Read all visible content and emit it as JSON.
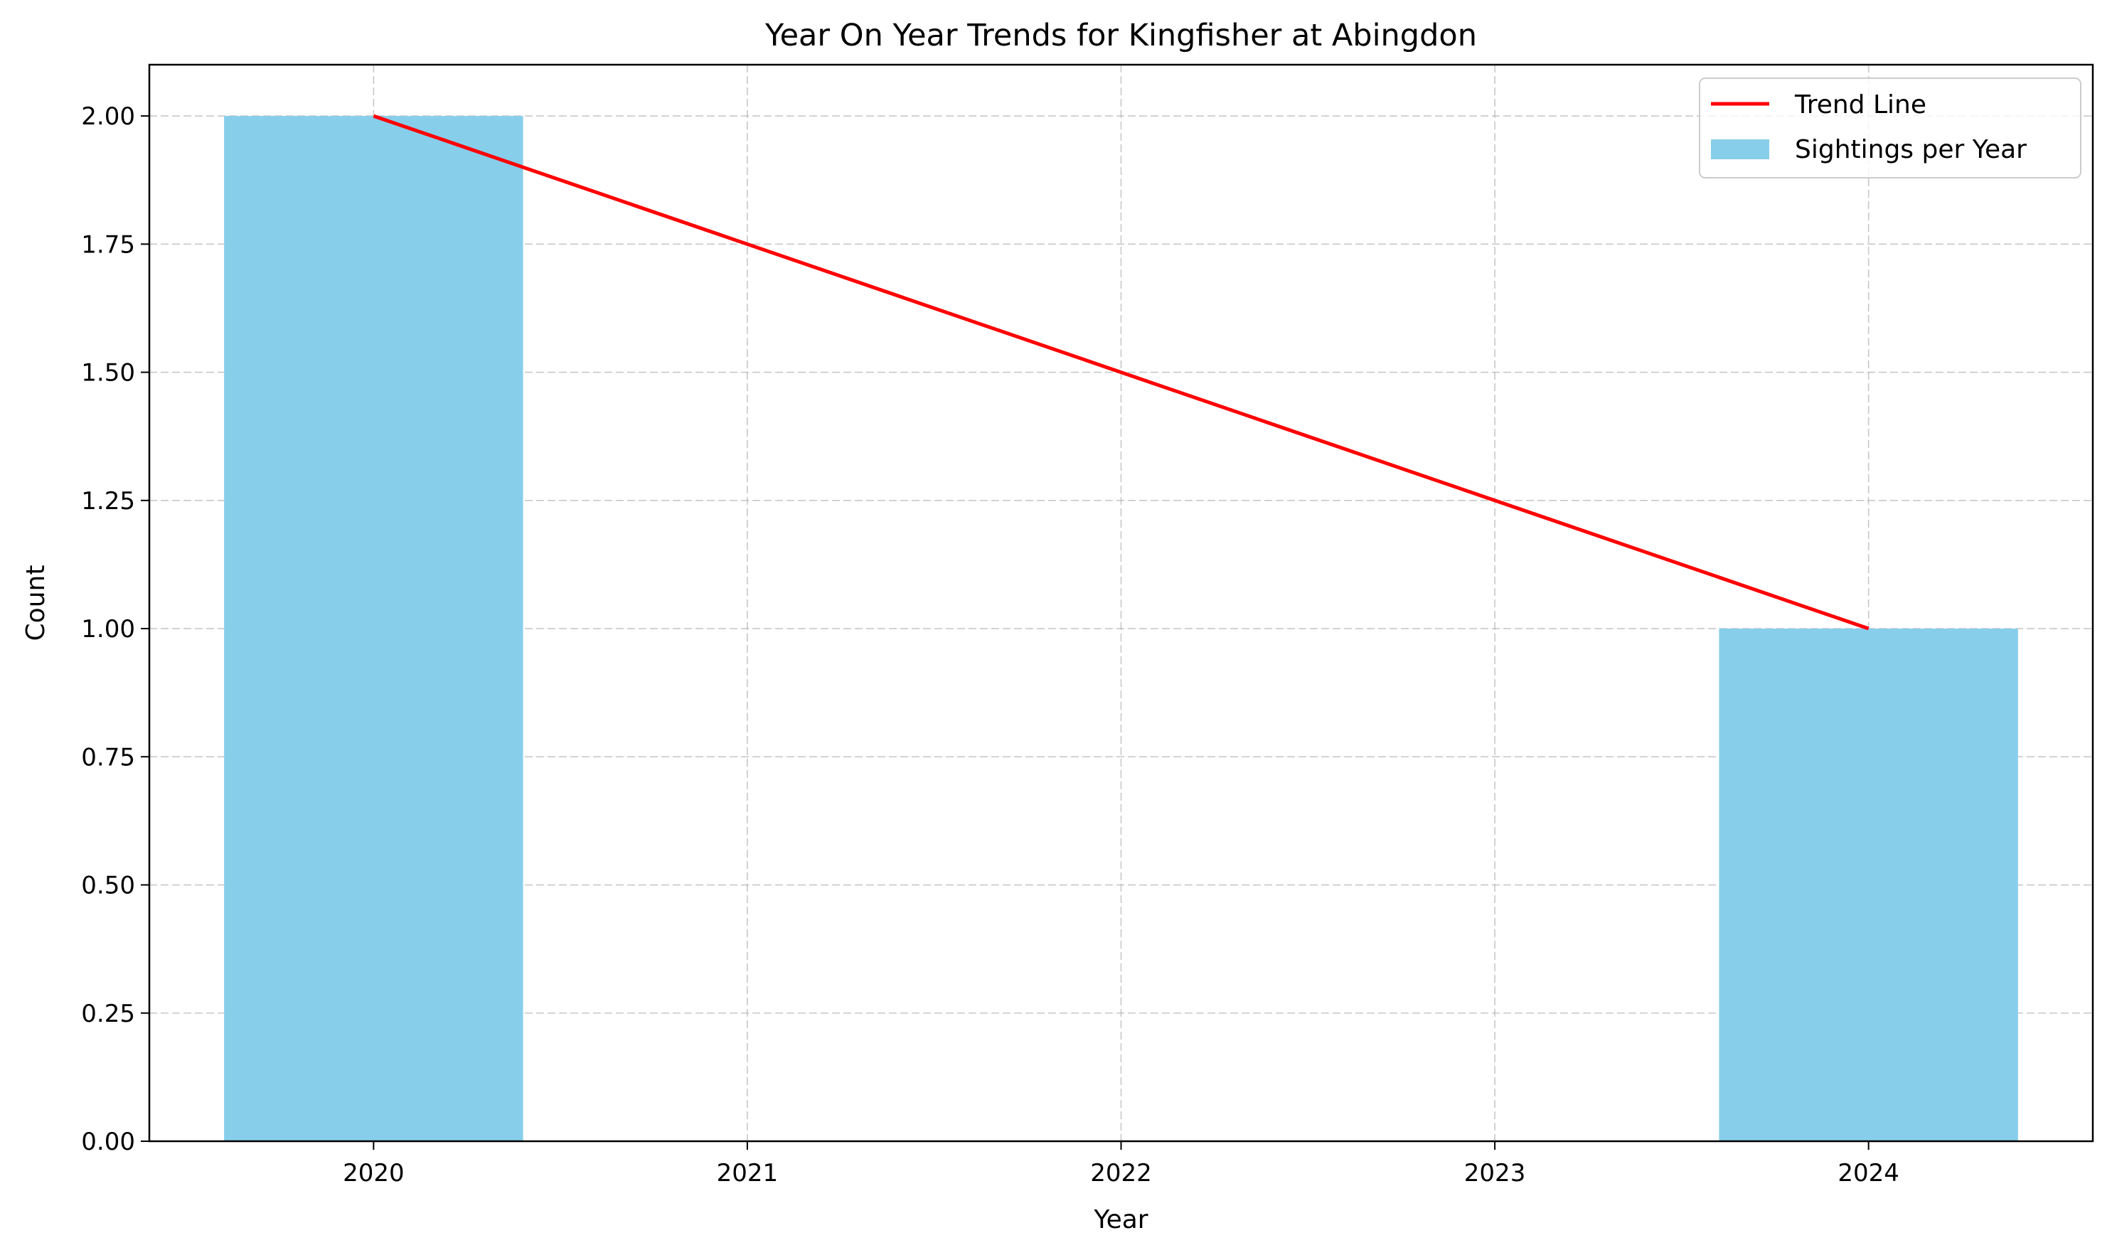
{
  "chart_data": {
    "type": "bar",
    "title": "Year On Year Trends for Kingfisher at Abingdon",
    "xlabel": "Year",
    "ylabel": "Count",
    "categories": [
      "2020",
      "2021",
      "2022",
      "2023",
      "2024"
    ],
    "series": [
      {
        "name": "Sightings per Year",
        "type": "bar",
        "color": "#87ceeb",
        "values": [
          2,
          0,
          0,
          0,
          1
        ]
      },
      {
        "name": "Trend Line",
        "type": "line",
        "color": "#ff0000",
        "points": [
          {
            "x": "2020",
            "y": 2.0
          },
          {
            "x": "2024",
            "y": 1.0
          }
        ]
      }
    ],
    "ylim": [
      0,
      2.1
    ],
    "yticks": [
      "0.00",
      "0.25",
      "0.50",
      "0.75",
      "1.00",
      "1.25",
      "1.50",
      "1.75",
      "2.00"
    ],
    "grid": true,
    "legend_position": "top-right"
  }
}
